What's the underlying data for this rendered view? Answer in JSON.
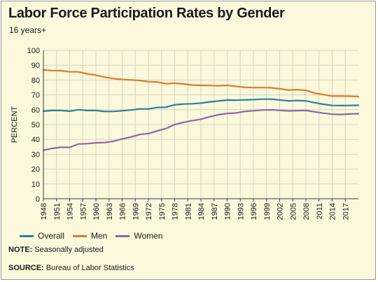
{
  "colors": {
    "background": "#fbf8dc",
    "plot_background": "#fbf8dc",
    "grid": "#d6d3bf",
    "axis": "#3a3a3a",
    "overall": "#2a7fa1",
    "men": "#d97c2b",
    "women": "#8a6aa3"
  },
  "note": {
    "label": "NOTE:",
    "text": "Seasonally adjusted"
  },
  "source": {
    "label": "SOURCE:",
    "text": "Bureau of Labor Statistics"
  },
  "chart_data": {
    "type": "line",
    "title": "Labor Force Participation Rates by Gender",
    "subtitle": "16 years+",
    "xlabel": "",
    "ylabel": "PERCENT",
    "xlim": [
      1948,
      2020
    ],
    "ylim": [
      0,
      100
    ],
    "yticks": [
      0,
      10,
      20,
      30,
      40,
      50,
      60,
      70,
      80,
      90,
      100
    ],
    "xticks": [
      1948,
      1951,
      1954,
      1957,
      1960,
      1963,
      1966,
      1969,
      1972,
      1975,
      1978,
      1981,
      1984,
      1987,
      1990,
      1993,
      1996,
      1999,
      2002,
      2005,
      2008,
      2011,
      2014,
      2017
    ],
    "grid": true,
    "legend_position": "bottom",
    "series": [
      {
        "name": "Overall",
        "color_key": "overall",
        "x": [
          1948,
          1950,
          1952,
          1954,
          1956,
          1958,
          1960,
          1962,
          1964,
          1966,
          1968,
          1970,
          1972,
          1974,
          1976,
          1978,
          1980,
          1982,
          1984,
          1986,
          1988,
          1990,
          1992,
          1994,
          1996,
          1998,
          2000,
          2002,
          2004,
          2006,
          2008,
          2010,
          2012,
          2014,
          2016,
          2018,
          2020
        ],
        "y": [
          59.0,
          59.5,
          59.5,
          59.0,
          60.0,
          59.5,
          59.5,
          58.8,
          58.8,
          59.3,
          59.8,
          60.5,
          60.5,
          61.5,
          61.7,
          63.3,
          63.8,
          64.0,
          64.5,
          65.3,
          65.9,
          66.5,
          66.4,
          66.6,
          66.8,
          67.1,
          67.1,
          66.6,
          66.0,
          66.2,
          66.0,
          64.7,
          63.7,
          62.9,
          62.8,
          62.9,
          63.0
        ]
      },
      {
        "name": "Men",
        "color_key": "men",
        "x": [
          1948,
          1950,
          1952,
          1954,
          1956,
          1958,
          1960,
          1962,
          1964,
          1966,
          1968,
          1970,
          1972,
          1974,
          1976,
          1978,
          1980,
          1982,
          1984,
          1986,
          1988,
          1990,
          1992,
          1994,
          1996,
          1998,
          2000,
          2002,
          2004,
          2006,
          2008,
          2010,
          2012,
          2014,
          2016,
          2018,
          2020
        ],
        "y": [
          86.8,
          86.4,
          86.3,
          85.5,
          85.5,
          84.2,
          83.3,
          82.0,
          81.0,
          80.4,
          80.1,
          79.7,
          78.9,
          78.7,
          77.5,
          77.9,
          77.4,
          76.6,
          76.4,
          76.3,
          76.2,
          76.4,
          75.8,
          75.1,
          74.9,
          74.9,
          74.8,
          74.1,
          73.3,
          73.5,
          73.0,
          71.2,
          70.2,
          69.2,
          69.2,
          69.1,
          68.8
        ]
      },
      {
        "name": "Women",
        "color_key": "women",
        "x": [
          1948,
          1950,
          1952,
          1954,
          1956,
          1958,
          1960,
          1962,
          1964,
          1966,
          1968,
          1970,
          1972,
          1974,
          1976,
          1978,
          1980,
          1982,
          1984,
          1986,
          1988,
          1990,
          1992,
          1994,
          1996,
          1998,
          2000,
          2002,
          2004,
          2006,
          2008,
          2010,
          2012,
          2014,
          2016,
          2018,
          2020
        ],
        "y": [
          32.7,
          33.9,
          34.7,
          34.6,
          36.9,
          37.1,
          37.7,
          37.9,
          38.7,
          40.3,
          41.6,
          43.3,
          43.9,
          45.7,
          47.3,
          50.0,
          51.5,
          52.6,
          53.6,
          55.3,
          56.6,
          57.5,
          57.8,
          58.8,
          59.3,
          59.8,
          59.9,
          59.6,
          59.2,
          59.4,
          59.5,
          58.6,
          57.7,
          57.0,
          56.8,
          57.1,
          57.3
        ]
      }
    ]
  }
}
